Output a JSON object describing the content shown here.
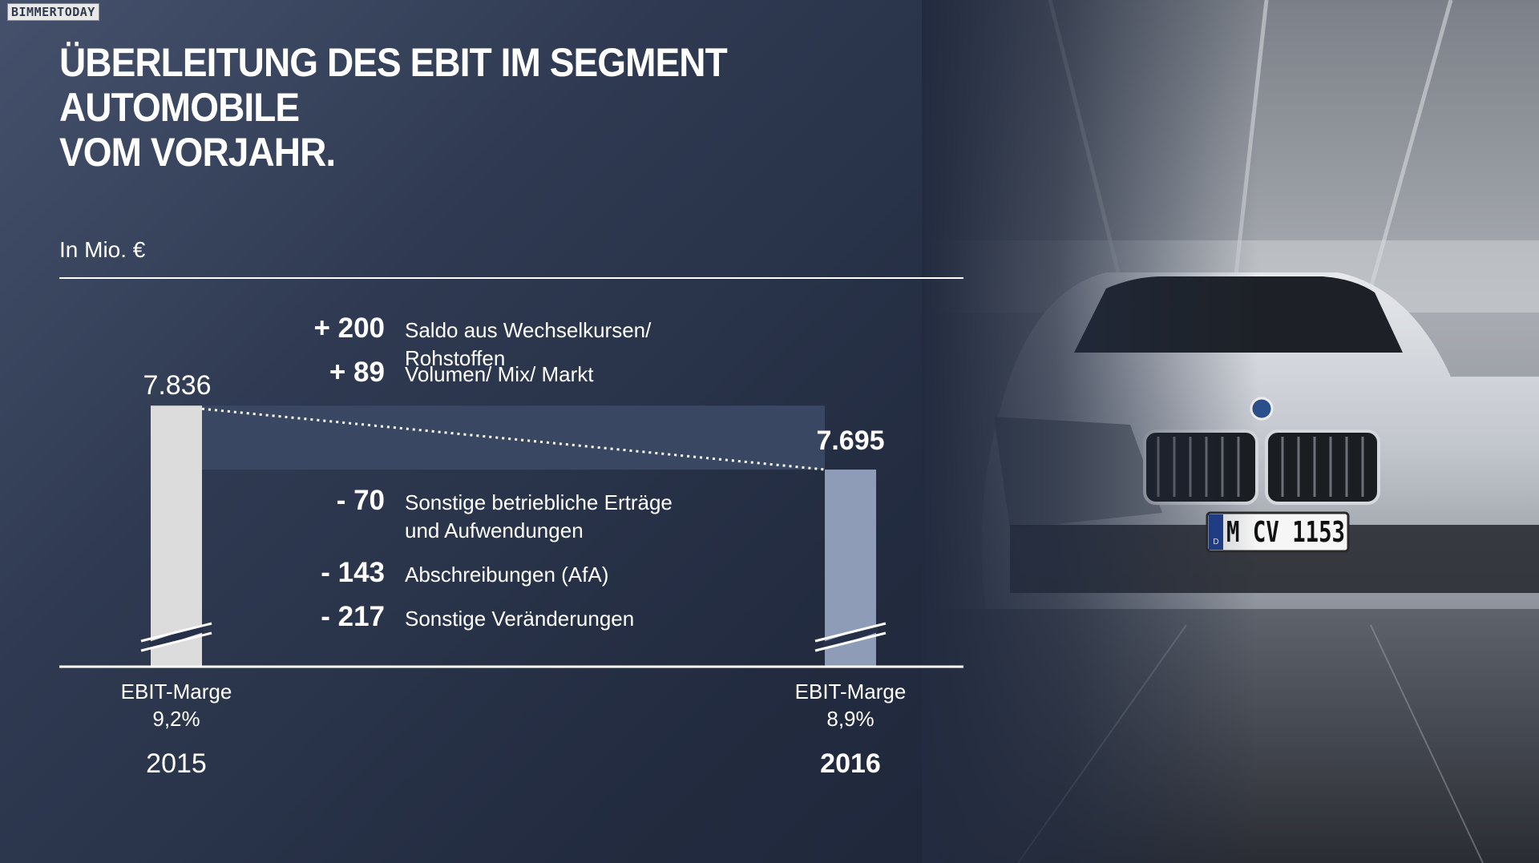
{
  "watermark": "BIMMERTODAY",
  "title_lines": [
    "ÜBERLEITUNG DES EBIT IM SEGMENT AUTOMOBILE",
    "VOM VORJAHR."
  ],
  "unit": "In Mio. €",
  "plate": "M CV 1153",
  "plate_country": "D",
  "colors": {
    "bar_2015": "#dcdcdc",
    "bar_2016": "#8f9cb8",
    "band": "#3a4763",
    "axis": "#ffffff"
  },
  "chart_data": {
    "type": "bar",
    "categories": [
      "2015",
      "2016"
    ],
    "values": [
      7836,
      7695
    ],
    "value_labels": [
      "7.836",
      "7.695"
    ],
    "margins": [
      {
        "label": "EBIT-Marge",
        "value": "9,2%"
      },
      {
        "label": "EBIT-Marge",
        "value": "8,9%"
      }
    ],
    "deltas": [
      {
        "value": "+ 200",
        "amount": 200,
        "label": "Saldo aus Wechselkursen/ Rohstoffen"
      },
      {
        "value": "+ 89",
        "amount": 89,
        "label": "Volumen/ Mix/ Markt"
      },
      {
        "value": "- 70",
        "amount": -70,
        "label": "Sonstige betriebliche Erträge und Aufwendungen"
      },
      {
        "value": "- 143",
        "amount": -143,
        "label": "Abschreibungen (AfA)"
      },
      {
        "value": "- 217",
        "amount": -217,
        "label": "Sonstige Veränderungen"
      }
    ],
    "axis_break": true,
    "title": "",
    "xlabel": "",
    "ylabel": "In Mio. €"
  }
}
